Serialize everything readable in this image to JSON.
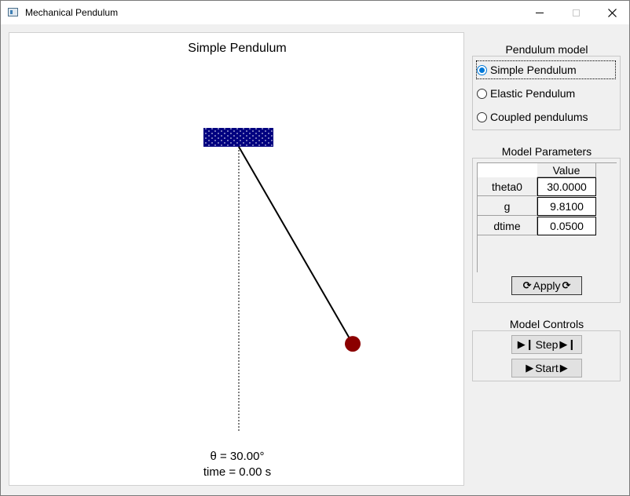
{
  "window": {
    "title": "Mechanical Pendulum",
    "app_icon": "app-window-icon",
    "controls": {
      "minimize": "minimize-icon",
      "maximize": "maximize-icon",
      "close": "close-icon"
    }
  },
  "canvas": {
    "title": "Simple Pendulum",
    "theta_readout": "θ = 30.00°",
    "time_readout": "time = 0.00 s",
    "pendulum": {
      "theta_deg": 30.0
    },
    "colors": {
      "support": "#000080",
      "bob": "#8b0000",
      "rod": "#000000"
    }
  },
  "pendulum_model": {
    "title": "Pendulum model",
    "options": [
      {
        "label": "Simple Pendulum",
        "checked": true
      },
      {
        "label": "Elastic Pendulum",
        "checked": false
      },
      {
        "label": "Coupled pendulums",
        "checked": false
      }
    ]
  },
  "model_parameters": {
    "title": "Model Parameters",
    "column_header": "Value",
    "rows": [
      {
        "name": "theta0",
        "value": "30.0000"
      },
      {
        "name": "g",
        "value": "9.8100"
      },
      {
        "name": "dtime",
        "value": "0.0500"
      }
    ],
    "apply_label": "Apply",
    "apply_icon": "refresh-icon"
  },
  "model_controls": {
    "title": "Model Controls",
    "step_label": "Step",
    "step_icon": "step-forward-icon",
    "start_label": "Start",
    "start_icon": "play-icon"
  }
}
